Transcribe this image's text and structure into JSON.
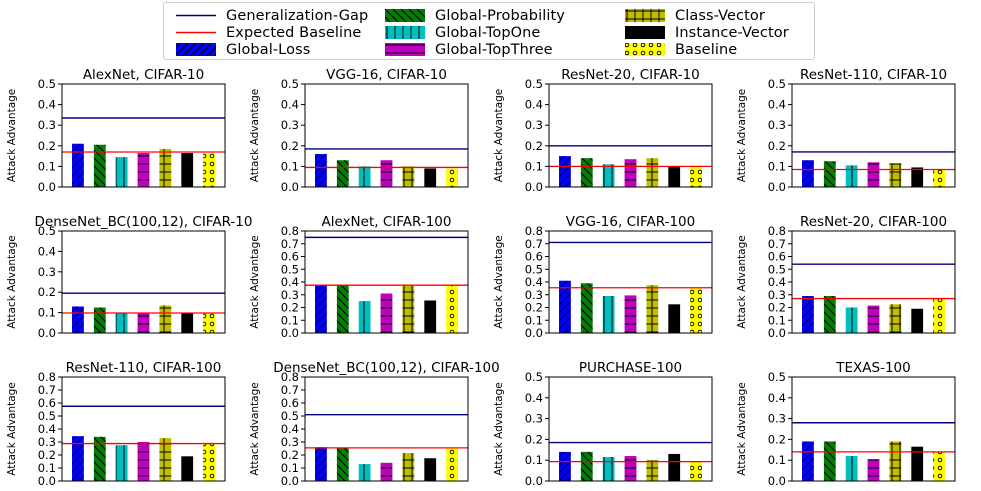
{
  "legend": [
    {
      "label": "Generalization-Gap",
      "kind": "line",
      "color": "#000080"
    },
    {
      "label": "Expected Baseline",
      "kind": "line",
      "color": "#ff0000"
    },
    {
      "label": "Global-Loss",
      "kind": "bar",
      "color": "#0000ff",
      "hatch": "slash"
    },
    {
      "label": "Global-Probability",
      "kind": "bar",
      "color": "#008000",
      "hatch": "backslash"
    },
    {
      "label": "Global-TopOne",
      "kind": "bar",
      "color": "#00bfbf",
      "hatch": "vertical"
    },
    {
      "label": "Global-TopThree",
      "kind": "bar",
      "color": "#bf00bf",
      "hatch": "horizontal"
    },
    {
      "label": "Class-Vector",
      "kind": "bar",
      "color": "#bfbf00",
      "hatch": "plus"
    },
    {
      "label": "Instance-Vector",
      "kind": "bar",
      "color": "#000000",
      "hatch": "none"
    },
    {
      "label": "Baseline",
      "kind": "bar",
      "color": "#ffff00",
      "hatch": "circles"
    }
  ],
  "chart_data": [
    {
      "type": "bar",
      "title": "AlexNet, CIFAR-10",
      "ylabel": "Attack Advantage",
      "ylim": [
        0,
        0.5
      ],
      "yticks": [
        "0.0",
        "0.1",
        "0.2",
        "0.3",
        "0.4",
        "0.5"
      ],
      "tickvals": [
        0,
        0.1,
        0.2,
        0.3,
        0.4,
        0.5
      ],
      "generalization_gap": 0.335,
      "expected_baseline": 0.17,
      "values": [
        0.21,
        0.205,
        0.145,
        0.165,
        0.185,
        0.165,
        0.165
      ]
    },
    {
      "type": "bar",
      "title": "VGG-16, CIFAR-10",
      "ylabel": "Attack Advantage",
      "ylim": [
        0,
        0.5
      ],
      "yticks": [
        "0.0",
        "0.1",
        "0.2",
        "0.3",
        "0.4",
        "0.5"
      ],
      "tickvals": [
        0,
        0.1,
        0.2,
        0.3,
        0.4,
        0.5
      ],
      "generalization_gap": 0.185,
      "expected_baseline": 0.095,
      "values": [
        0.16,
        0.13,
        0.1,
        0.13,
        0.1,
        0.09,
        0.09
      ]
    },
    {
      "type": "bar",
      "title": "ResNet-20, CIFAR-10",
      "ylabel": "Attack Advantage",
      "ylim": [
        0,
        0.5
      ],
      "yticks": [
        "0.0",
        "0.1",
        "0.2",
        "0.3",
        "0.4",
        "0.5"
      ],
      "tickvals": [
        0,
        0.1,
        0.2,
        0.3,
        0.4,
        0.5
      ],
      "generalization_gap": 0.2,
      "expected_baseline": 0.1,
      "values": [
        0.15,
        0.14,
        0.11,
        0.135,
        0.14,
        0.1,
        0.1
      ]
    },
    {
      "type": "bar",
      "title": "ResNet-110, CIFAR-10",
      "ylabel": "Attack Advantage",
      "ylim": [
        0,
        0.5
      ],
      "yticks": [
        "0.0",
        "0.1",
        "0.2",
        "0.3",
        "0.4",
        "0.5"
      ],
      "tickvals": [
        0,
        0.1,
        0.2,
        0.3,
        0.4,
        0.5
      ],
      "generalization_gap": 0.17,
      "expected_baseline": 0.085,
      "values": [
        0.13,
        0.125,
        0.105,
        0.12,
        0.115,
        0.095,
        0.085
      ]
    },
    {
      "type": "bar",
      "title": "DenseNet_BC(100,12), CIFAR-10",
      "ylabel": "Attack Advantage",
      "ylim": [
        0,
        0.5
      ],
      "yticks": [
        "0.0",
        "0.1",
        "0.2",
        "0.3",
        "0.4",
        "0.5"
      ],
      "tickvals": [
        0,
        0.1,
        0.2,
        0.3,
        0.4,
        0.5
      ],
      "generalization_gap": 0.195,
      "expected_baseline": 0.098,
      "values": [
        0.13,
        0.125,
        0.1,
        0.1,
        0.135,
        0.1,
        0.1
      ]
    },
    {
      "type": "bar",
      "title": "AlexNet, CIFAR-100",
      "ylabel": "Attack Advantage",
      "ylim": [
        0,
        0.8
      ],
      "yticks": [
        "0.0",
        "0.1",
        "0.2",
        "0.3",
        "0.4",
        "0.5",
        "0.6",
        "0.7",
        "0.8"
      ],
      "tickvals": [
        0,
        0.1,
        0.2,
        0.3,
        0.4,
        0.5,
        0.6,
        0.7,
        0.8
      ],
      "generalization_gap": 0.75,
      "expected_baseline": 0.375,
      "values": [
        0.375,
        0.375,
        0.25,
        0.31,
        0.37,
        0.255,
        0.375
      ]
    },
    {
      "type": "bar",
      "title": "VGG-16, CIFAR-100",
      "ylabel": "Attack Advantage",
      "ylim": [
        0,
        0.8
      ],
      "yticks": [
        "0.0",
        "0.1",
        "0.2",
        "0.3",
        "0.4",
        "0.5",
        "0.6",
        "0.7",
        "0.8"
      ],
      "tickvals": [
        0,
        0.1,
        0.2,
        0.3,
        0.4,
        0.5,
        0.6,
        0.7,
        0.8
      ],
      "generalization_gap": 0.71,
      "expected_baseline": 0.355,
      "values": [
        0.41,
        0.39,
        0.29,
        0.295,
        0.375,
        0.225,
        0.355
      ]
    },
    {
      "type": "bar",
      "title": "ResNet-20, CIFAR-100",
      "ylabel": "Attack Advantage",
      "ylim": [
        0,
        0.8
      ],
      "yticks": [
        "0.0",
        "0.1",
        "0.2",
        "0.3",
        "0.4",
        "0.5",
        "0.6",
        "0.7",
        "0.8"
      ],
      "tickvals": [
        0,
        0.1,
        0.2,
        0.3,
        0.4,
        0.5,
        0.6,
        0.7,
        0.8
      ],
      "generalization_gap": 0.54,
      "expected_baseline": 0.27,
      "values": [
        0.29,
        0.29,
        0.2,
        0.215,
        0.225,
        0.19,
        0.27
      ]
    },
    {
      "type": "bar",
      "title": "ResNet-110, CIFAR-100",
      "ylabel": "Attack Advantage",
      "ylim": [
        0,
        0.8
      ],
      "yticks": [
        "0.0",
        "0.1",
        "0.2",
        "0.3",
        "0.4",
        "0.5",
        "0.6",
        "0.7",
        "0.8"
      ],
      "tickvals": [
        0,
        0.1,
        0.2,
        0.3,
        0.4,
        0.5,
        0.6,
        0.7,
        0.8
      ],
      "generalization_gap": 0.575,
      "expected_baseline": 0.288,
      "values": [
        0.345,
        0.34,
        0.275,
        0.3,
        0.33,
        0.19,
        0.288
      ]
    },
    {
      "type": "bar",
      "title": "DenseNet_BC(100,12), CIFAR-100",
      "ylabel": "Attack Advantage",
      "ylim": [
        0,
        0.8
      ],
      "yticks": [
        "0.0",
        "0.1",
        "0.2",
        "0.3",
        "0.4",
        "0.5",
        "0.6",
        "0.7",
        "0.8"
      ],
      "tickvals": [
        0,
        0.1,
        0.2,
        0.3,
        0.4,
        0.5,
        0.6,
        0.7,
        0.8
      ],
      "generalization_gap": 0.51,
      "expected_baseline": 0.255,
      "values": [
        0.26,
        0.255,
        0.13,
        0.14,
        0.215,
        0.175,
        0.255
      ]
    },
    {
      "type": "bar",
      "title": "PURCHASE-100",
      "ylabel": "Attack Advantage",
      "ylim": [
        0,
        0.5
      ],
      "yticks": [
        "0.0",
        "0.1",
        "0.2",
        "0.3",
        "0.4",
        "0.5"
      ],
      "tickvals": [
        0,
        0.1,
        0.2,
        0.3,
        0.4,
        0.5
      ],
      "generalization_gap": 0.185,
      "expected_baseline": 0.093,
      "values": [
        0.14,
        0.14,
        0.115,
        0.12,
        0.1,
        0.13,
        0.093
      ]
    },
    {
      "type": "bar",
      "title": "TEXAS-100",
      "ylabel": "Attack Advantage",
      "ylim": [
        0,
        0.5
      ],
      "yticks": [
        "0.0",
        "0.1",
        "0.2",
        "0.3",
        "0.4",
        "0.5"
      ],
      "tickvals": [
        0,
        0.1,
        0.2,
        0.3,
        0.4,
        0.5
      ],
      "generalization_gap": 0.28,
      "expected_baseline": 0.14,
      "values": [
        0.19,
        0.19,
        0.12,
        0.105,
        0.19,
        0.165,
        0.14
      ]
    }
  ]
}
